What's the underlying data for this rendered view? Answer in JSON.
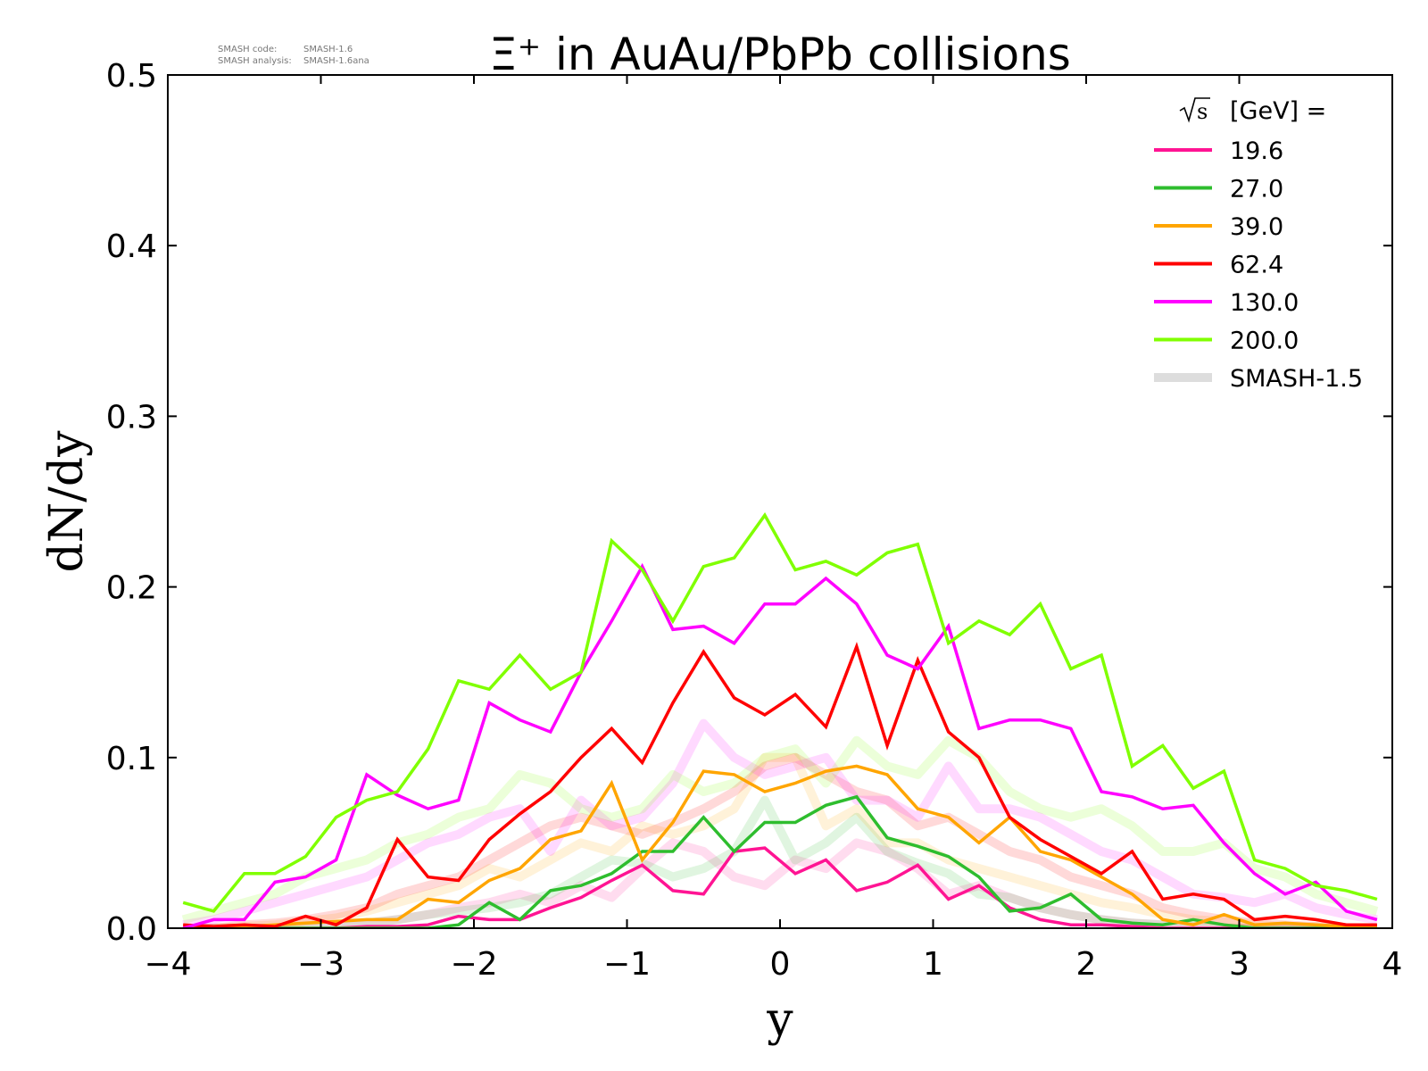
{
  "page": {
    "info_line_1_label": "SMASH code:",
    "info_line_1_value": "SMASH-1.6",
    "info_line_2_label": "SMASH analysis:",
    "info_line_2_value": "SMASH-1.6ana"
  },
  "chart_data": {
    "type": "line",
    "title": "Ξ⁺ in AuAu/PbPb collisions",
    "xlabel": "y",
    "ylabel": "dN/dy",
    "xlim": [
      -4,
      4
    ],
    "ylim": [
      0,
      0.5
    ],
    "x_ticks": [
      -4,
      -3,
      -2,
      -1,
      0,
      1,
      2,
      3,
      4
    ],
    "x_tick_labels": [
      "−4",
      "−3",
      "−2",
      "−1",
      "0",
      "1",
      "2",
      "3",
      "4"
    ],
    "y_ticks": [
      0,
      0.1,
      0.2,
      0.3,
      0.4,
      0.5
    ],
    "y_tick_labels": [
      "0.0",
      "0.1",
      "0.2",
      "0.3",
      "0.4",
      "0.5"
    ],
    "grid": false,
    "legend": {
      "placement": "top-right",
      "title_root": "s",
      "title_suffix": "[GeV] =",
      "reference_label": "SMASH-1.5",
      "reference_color": "#dddddd"
    },
    "x": [
      -3.9,
      -3.7,
      -3.5,
      -3.3,
      -3.1,
      -2.9,
      -2.7,
      -2.5,
      -2.3,
      -2.1,
      -1.9,
      -1.7,
      -1.5,
      -1.3,
      -1.1,
      -0.9,
      -0.7,
      -0.5,
      -0.3,
      -0.1,
      0.1,
      0.3,
      0.5,
      0.7,
      0.9,
      1.1,
      1.3,
      1.5,
      1.7,
      1.9,
      2.1,
      2.3,
      2.5,
      2.7,
      2.9,
      3.1,
      3.3,
      3.5,
      3.7,
      3.9
    ],
    "series": [
      {
        "name": "19.6",
        "color": "#ff1493",
        "values": [
          0.0,
          0.0,
          0.0,
          0.0,
          0.0,
          0.0,
          0.001,
          0.001,
          0.002,
          0.007,
          0.005,
          0.005,
          0.012,
          0.018,
          0.028,
          0.037,
          0.022,
          0.02,
          0.045,
          0.047,
          0.032,
          0.04,
          0.022,
          0.027,
          0.037,
          0.017,
          0.025,
          0.012,
          0.005,
          0.002,
          0.002,
          0.001,
          0.0,
          0.0,
          0.0,
          0.0,
          0.0,
          0.0,
          0.0,
          0.0
        ],
        "ref_values": [
          0.0,
          0.0,
          0.0,
          0.0,
          0.001,
          0.002,
          0.003,
          0.005,
          0.008,
          0.012,
          0.015,
          0.02,
          0.015,
          0.025,
          0.018,
          0.035,
          0.05,
          0.045,
          0.03,
          0.025,
          0.04,
          0.035,
          0.05,
          0.045,
          0.035,
          0.02,
          0.025,
          0.018,
          0.012,
          0.008,
          0.005,
          0.003,
          0.002,
          0.001,
          0.0,
          0.0,
          0.0,
          0.0,
          0.0,
          0.0
        ]
      },
      {
        "name": "27.0",
        "color": "#2ebd2e",
        "values": [
          0.0,
          0.0,
          0.0,
          0.0,
          0.0,
          0.0,
          0.0,
          0.0,
          0.0,
          0.002,
          0.015,
          0.005,
          0.022,
          0.025,
          0.032,
          0.045,
          0.045,
          0.065,
          0.045,
          0.062,
          0.062,
          0.072,
          0.077,
          0.053,
          0.048,
          0.042,
          0.03,
          0.01,
          0.012,
          0.02,
          0.005,
          0.003,
          0.002,
          0.005,
          0.002,
          0.0,
          0.0,
          0.0,
          0.0,
          0.0
        ],
        "ref_values": [
          0.0,
          0.0,
          0.0,
          0.0,
          0.001,
          0.002,
          0.003,
          0.005,
          0.008,
          0.01,
          0.012,
          0.015,
          0.02,
          0.03,
          0.04,
          0.038,
          0.03,
          0.035,
          0.045,
          0.075,
          0.04,
          0.05,
          0.065,
          0.045,
          0.038,
          0.032,
          0.02,
          0.018,
          0.012,
          0.008,
          0.005,
          0.003,
          0.002,
          0.001,
          0.0,
          0.0,
          0.0,
          0.0,
          0.0,
          0.0
        ]
      },
      {
        "name": "39.0",
        "color": "#ffa500",
        "values": [
          0.0,
          0.0,
          0.001,
          0.002,
          0.003,
          0.004,
          0.005,
          0.005,
          0.017,
          0.015,
          0.028,
          0.035,
          0.052,
          0.057,
          0.085,
          0.04,
          0.062,
          0.092,
          0.09,
          0.08,
          0.085,
          0.092,
          0.095,
          0.09,
          0.07,
          0.065,
          0.05,
          0.065,
          0.045,
          0.04,
          0.03,
          0.02,
          0.005,
          0.002,
          0.008,
          0.002,
          0.003,
          0.002,
          0.001,
          0.001
        ],
        "ref_values": [
          0.0,
          0.0,
          0.001,
          0.002,
          0.004,
          0.006,
          0.01,
          0.015,
          0.02,
          0.025,
          0.035,
          0.03,
          0.04,
          0.05,
          0.045,
          0.06,
          0.055,
          0.06,
          0.07,
          0.1,
          0.1,
          0.06,
          0.07,
          0.05,
          0.05,
          0.04,
          0.035,
          0.03,
          0.025,
          0.02,
          0.015,
          0.012,
          0.008,
          0.005,
          0.004,
          0.002,
          0.001,
          0.001,
          0.0,
          0.0
        ]
      },
      {
        "name": "62.4",
        "color": "#ff0000",
        "values": [
          0.002,
          0.001,
          0.002,
          0.001,
          0.007,
          0.002,
          0.012,
          0.052,
          0.03,
          0.028,
          0.052,
          0.067,
          0.08,
          0.1,
          0.117,
          0.097,
          0.132,
          0.162,
          0.135,
          0.125,
          0.137,
          0.118,
          0.165,
          0.107,
          0.157,
          0.115,
          0.1,
          0.065,
          0.052,
          0.042,
          0.032,
          0.045,
          0.017,
          0.02,
          0.017,
          0.005,
          0.007,
          0.005,
          0.002,
          0.002
        ],
        "ref_values": [
          0.0,
          0.0,
          0.002,
          0.003,
          0.005,
          0.008,
          0.012,
          0.02,
          0.025,
          0.03,
          0.04,
          0.05,
          0.06,
          0.065,
          0.06,
          0.055,
          0.062,
          0.07,
          0.08,
          0.095,
          0.1,
          0.09,
          0.08,
          0.075,
          0.06,
          0.065,
          0.055,
          0.045,
          0.04,
          0.03,
          0.025,
          0.02,
          0.012,
          0.008,
          0.005,
          0.003,
          0.002,
          0.001,
          0.0,
          0.0
        ]
      },
      {
        "name": "130.0",
        "color": "#ff00ff",
        "values": [
          0.0,
          0.005,
          0.005,
          0.027,
          0.03,
          0.04,
          0.09,
          0.078,
          0.07,
          0.075,
          0.132,
          0.122,
          0.115,
          0.15,
          0.18,
          0.212,
          0.175,
          0.177,
          0.167,
          0.19,
          0.19,
          0.205,
          0.19,
          0.16,
          0.152,
          0.177,
          0.117,
          0.122,
          0.122,
          0.117,
          0.08,
          0.077,
          0.07,
          0.072,
          0.05,
          0.032,
          0.02,
          0.027,
          0.01,
          0.005
        ],
        "ref_values": [
          0.002,
          0.005,
          0.01,
          0.015,
          0.02,
          0.025,
          0.03,
          0.04,
          0.05,
          0.055,
          0.065,
          0.07,
          0.045,
          0.075,
          0.06,
          0.065,
          0.085,
          0.12,
          0.1,
          0.09,
          0.095,
          0.1,
          0.075,
          0.075,
          0.065,
          0.095,
          0.07,
          0.07,
          0.065,
          0.055,
          0.045,
          0.04,
          0.03,
          0.02,
          0.018,
          0.015,
          0.02,
          0.012,
          0.008,
          0.005
        ]
      },
      {
        "name": "200.0",
        "color": "#80ff00",
        "values": [
          0.015,
          0.01,
          0.032,
          0.032,
          0.042,
          0.065,
          0.075,
          0.08,
          0.105,
          0.145,
          0.14,
          0.16,
          0.14,
          0.15,
          0.227,
          0.21,
          0.18,
          0.212,
          0.217,
          0.242,
          0.21,
          0.215,
          0.207,
          0.22,
          0.225,
          0.167,
          0.18,
          0.172,
          0.19,
          0.152,
          0.16,
          0.095,
          0.107,
          0.082,
          0.092,
          0.04,
          0.035,
          0.025,
          0.022,
          0.017
        ],
        "ref_values": [
          0.005,
          0.01,
          0.015,
          0.02,
          0.03,
          0.035,
          0.04,
          0.05,
          0.055,
          0.065,
          0.07,
          0.09,
          0.085,
          0.07,
          0.065,
          0.07,
          0.09,
          0.08,
          0.085,
          0.1,
          0.105,
          0.085,
          0.11,
          0.095,
          0.09,
          0.11,
          0.1,
          0.08,
          0.07,
          0.065,
          0.07,
          0.06,
          0.045,
          0.045,
          0.05,
          0.035,
          0.03,
          0.02,
          0.015,
          0.01
        ]
      }
    ]
  }
}
